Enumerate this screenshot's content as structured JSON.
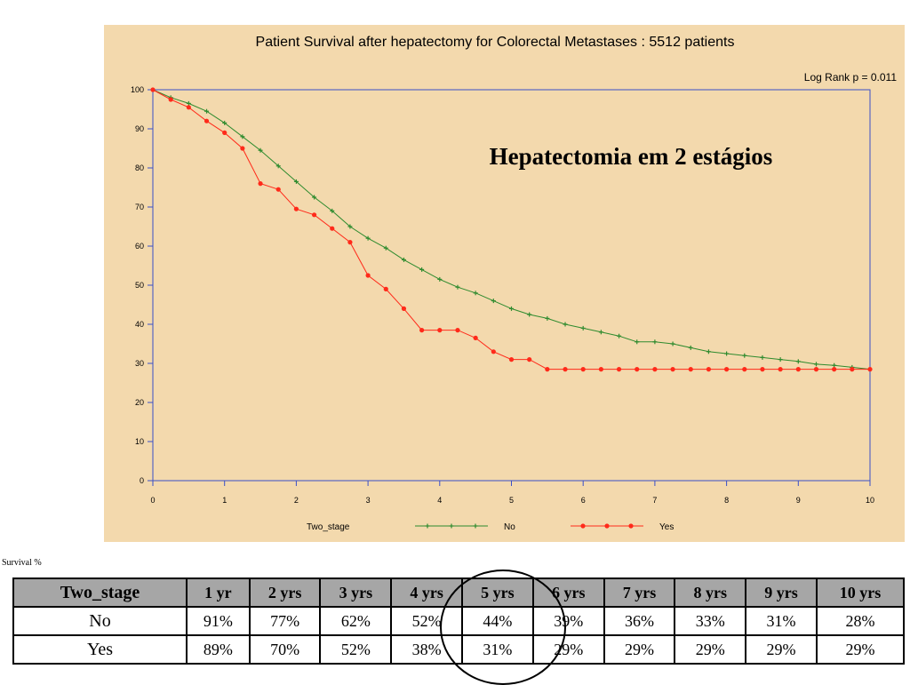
{
  "chart_data": {
    "type": "line",
    "title": "Patient Survival after hepatectomy for Colorectal Metastases : 5512 patients",
    "annotation": "Log Rank p = 0.011",
    "overlay_text": "Hepatectomia em 2 estágios",
    "xlim": [
      0,
      10
    ],
    "ylim": [
      0,
      100
    ],
    "x_ticks": [
      0,
      1,
      2,
      3,
      4,
      5,
      6,
      7,
      8,
      9,
      10
    ],
    "y_ticks": [
      0,
      10,
      20,
      30,
      40,
      50,
      60,
      70,
      80,
      90,
      100
    ],
    "grid": false,
    "legend": {
      "title": "Two_stage",
      "placement": "bottom"
    },
    "series": [
      {
        "name": "No",
        "color": "#2e8b2e",
        "marker": "plus",
        "x": [
          0,
          0.25,
          0.5,
          0.75,
          1,
          1.25,
          1.5,
          1.75,
          2,
          2.25,
          2.5,
          2.75,
          3,
          3.25,
          3.5,
          3.75,
          4,
          4.25,
          4.5,
          4.75,
          5,
          5.25,
          5.5,
          5.75,
          6,
          6.25,
          6.5,
          6.75,
          7,
          7.25,
          7.5,
          7.75,
          8,
          8.25,
          8.5,
          8.75,
          9,
          9.25,
          9.5,
          9.75,
          10
        ],
        "y": [
          100,
          98,
          96.5,
          94.5,
          91.5,
          88,
          84.5,
          80.5,
          76.5,
          72.5,
          69,
          65,
          62,
          59.5,
          56.5,
          54,
          51.5,
          49.5,
          48,
          46,
          44,
          42.5,
          41.5,
          40,
          39,
          38,
          37,
          35.5,
          35.5,
          35,
          34,
          33,
          32.5,
          32,
          31.5,
          31,
          30.5,
          29.8,
          29.5,
          29,
          28.5
        ]
      },
      {
        "name": "Yes",
        "color": "#ff2a1a",
        "marker": "circle",
        "x": [
          0,
          0.25,
          0.5,
          0.75,
          1,
          1.25,
          1.5,
          1.75,
          2,
          2.25,
          2.5,
          2.75,
          3,
          3.25,
          3.5,
          3.75,
          4,
          4.25,
          4.5,
          4.75,
          5,
          5.25,
          5.5,
          5.75,
          6,
          6.25,
          6.5,
          6.75,
          7,
          7.25,
          7.5,
          7.75,
          8,
          8.25,
          8.5,
          8.75,
          9,
          9.25,
          9.5,
          9.75,
          10
        ],
        "y": [
          100,
          97.5,
          95.5,
          92,
          89,
          85,
          76,
          74.5,
          69.5,
          68,
          64.5,
          61,
          52.5,
          49,
          44,
          38.5,
          38.5,
          38.5,
          36.5,
          33,
          31,
          31,
          28.5,
          28.5,
          28.5,
          28.5,
          28.5,
          28.5,
          28.5,
          28.5,
          28.5,
          28.5,
          28.5,
          28.5,
          28.5,
          28.5,
          28.5,
          28.5,
          28.5,
          28.5,
          28.5
        ]
      }
    ]
  },
  "table": {
    "caption": "Survival %",
    "headers": [
      "Two_stage",
      "1 yr",
      "2 yrs",
      "3 yrs",
      "4 yrs",
      "5 yrs",
      "6 yrs",
      "7 yrs",
      "8 yrs",
      "9 yrs",
      "10 yrs"
    ],
    "rows": [
      [
        "No",
        "91%",
        "77%",
        "62%",
        "52%",
        "44%",
        "39%",
        "36%",
        "33%",
        "31%",
        "28%"
      ],
      [
        "Yes",
        "89%",
        "70%",
        "52%",
        "38%",
        "31%",
        "29%",
        "29%",
        "29%",
        "29%",
        "29%"
      ]
    ]
  }
}
